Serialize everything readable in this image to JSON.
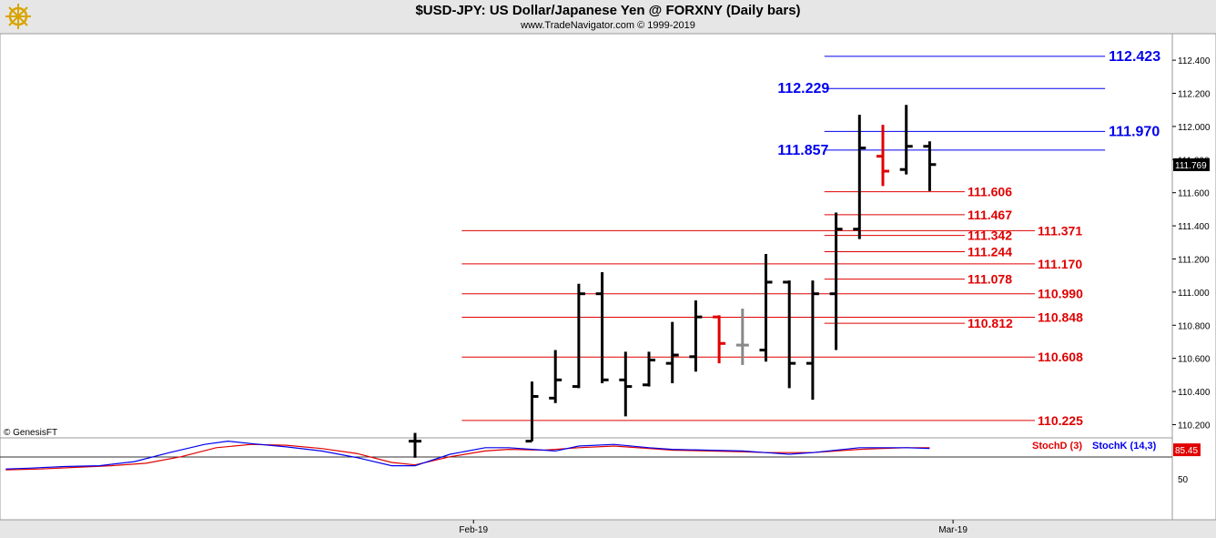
{
  "header": {
    "title": "$USD-JPY:  US Dollar/Japanese Yen @ FORXNY  (Daily bars)",
    "subtitle": "www.TradeNavigator.com © 1999-2019",
    "logo_icon": "ship-wheel-icon"
  },
  "chart_data": {
    "type": "ohlc",
    "y_ticks": [
      "110.200",
      "110.400",
      "110.600",
      "110.800",
      "111.000",
      "111.200",
      "111.400",
      "111.600",
      "111.800",
      "112.000",
      "112.200",
      "112.400"
    ],
    "ylim": [
      110.12,
      112.56
    ],
    "x_ticks": [
      {
        "label": "Feb-19",
        "index": 2.5
      },
      {
        "label": "Mar-19",
        "index": 23
      }
    ],
    "last_price": {
      "label": "111.769",
      "value": 111.769
    },
    "credit": "© GenesisFT",
    "colors": {
      "up": "#000000",
      "down": "#e00000",
      "neutral": "#888888",
      "blue": "#0000ee",
      "red": "#e00000"
    },
    "bars": [
      {
        "i": 0,
        "o": 110.1,
        "h": 110.15,
        "l": 110.0,
        "c": 110.1,
        "color": "up"
      },
      {
        "i": 5,
        "o": 110.1,
        "h": 110.46,
        "l": 110.1,
        "c": 110.37,
        "color": "up"
      },
      {
        "i": 6,
        "o": 110.36,
        "h": 110.65,
        "l": 110.33,
        "c": 110.47,
        "color": "up"
      },
      {
        "i": 7,
        "o": 110.43,
        "h": 111.05,
        "l": 110.42,
        "c": 110.99,
        "color": "up"
      },
      {
        "i": 8,
        "o": 110.99,
        "h": 111.12,
        "l": 110.45,
        "c": 110.47,
        "color": "up"
      },
      {
        "i": 9,
        "o": 110.47,
        "h": 110.64,
        "l": 110.25,
        "c": 110.43,
        "color": "up"
      },
      {
        "i": 10,
        "o": 110.44,
        "h": 110.64,
        "l": 110.43,
        "c": 110.59,
        "color": "up"
      },
      {
        "i": 11,
        "o": 110.57,
        "h": 110.82,
        "l": 110.45,
        "c": 110.62,
        "color": "up"
      },
      {
        "i": 12,
        "o": 110.61,
        "h": 110.95,
        "l": 110.52,
        "c": 110.85,
        "color": "up"
      },
      {
        "i": 13,
        "o": 110.85,
        "h": 110.86,
        "l": 110.57,
        "c": 110.69,
        "color": "down"
      },
      {
        "i": 14,
        "o": 110.68,
        "h": 110.9,
        "l": 110.56,
        "c": 110.68,
        "color": "neutral"
      },
      {
        "i": 15,
        "o": 110.65,
        "h": 111.23,
        "l": 110.58,
        "c": 111.06,
        "color": "up"
      },
      {
        "i": 16,
        "o": 111.06,
        "h": 111.07,
        "l": 110.42,
        "c": 110.57,
        "color": "up"
      },
      {
        "i": 17,
        "o": 110.57,
        "h": 111.07,
        "l": 110.35,
        "c": 110.99,
        "color": "up"
      },
      {
        "i": 18,
        "o": 110.99,
        "h": 111.48,
        "l": 110.65,
        "c": 111.38,
        "color": "up"
      },
      {
        "i": 19,
        "o": 111.38,
        "h": 112.07,
        "l": 111.32,
        "c": 111.87,
        "color": "up"
      },
      {
        "i": 20,
        "o": 111.82,
        "h": 112.01,
        "l": 111.64,
        "c": 111.73,
        "color": "down"
      },
      {
        "i": 21,
        "o": 111.74,
        "h": 112.13,
        "l": 111.71,
        "c": 111.88,
        "color": "up"
      },
      {
        "i": 22,
        "o": 111.88,
        "h": 111.91,
        "l": 111.61,
        "c": 111.77,
        "color": "up"
      }
    ],
    "levels": [
      {
        "label": "112.423",
        "value": 112.423,
        "color": "blue",
        "x1": 17.5,
        "x2": 29.5,
        "label_pos": "right"
      },
      {
        "label": "112.229",
        "value": 112.229,
        "color": "blue",
        "x1": 17.5,
        "x2": 29.5,
        "label_pos": "left"
      },
      {
        "label": "111.970",
        "value": 111.97,
        "color": "blue",
        "x1": 17.5,
        "x2": 29.5,
        "label_pos": "right"
      },
      {
        "label": "111.857",
        "value": 111.857,
        "color": "blue",
        "x1": 17.5,
        "x2": 29.5,
        "label_pos": "left"
      },
      {
        "label": "111.606",
        "value": 111.606,
        "color": "red",
        "x1": 17.5,
        "x2": 23.5,
        "label_pos": "end"
      },
      {
        "label": "111.467",
        "value": 111.467,
        "color": "red",
        "x1": 17.5,
        "x2": 23.5,
        "label_pos": "end"
      },
      {
        "label": "111.371",
        "value": 111.371,
        "color": "red",
        "x1": 2,
        "x2": 26.5,
        "label_pos": "end"
      },
      {
        "label": "111.342",
        "value": 111.342,
        "color": "red",
        "x1": 17.5,
        "x2": 23.5,
        "label_pos": "end"
      },
      {
        "label": "111.244",
        "value": 111.244,
        "color": "red",
        "x1": 17.5,
        "x2": 23.5,
        "label_pos": "end"
      },
      {
        "label": "111.170",
        "value": 111.17,
        "color": "red",
        "x1": 2,
        "x2": 26.5,
        "label_pos": "end"
      },
      {
        "label": "111.078",
        "value": 111.078,
        "color": "red",
        "x1": 17.5,
        "x2": 23.5,
        "label_pos": "end"
      },
      {
        "label": "110.990",
        "value": 110.99,
        "color": "red",
        "x1": 2,
        "x2": 26.5,
        "label_pos": "end"
      },
      {
        "label": "110.848",
        "value": 110.848,
        "color": "red",
        "x1": 2,
        "x2": 26.5,
        "label_pos": "end"
      },
      {
        "label": "110.812",
        "value": 110.812,
        "color": "red",
        "x1": 17.5,
        "x2": 23.5,
        "label_pos": "end"
      },
      {
        "label": "110.608",
        "value": 110.608,
        "color": "red",
        "x1": 2,
        "x2": 26.5,
        "label_pos": "end"
      },
      {
        "label": "110.225",
        "value": 110.225,
        "color": "red",
        "x1": 2,
        "x2": 26.5,
        "label_pos": "end"
      }
    ],
    "stochastic": {
      "ylim": [
        0,
        100
      ],
      "tick_label": "50",
      "tick_value": 50,
      "value_label": "85.45",
      "value": 85.45,
      "legend": [
        {
          "name": "StochD (3)",
          "color": "red"
        },
        {
          "name": "StochK (14,3)",
          "color": "blue"
        }
      ],
      "k": [
        {
          "x": -17.5,
          "y": 62
        },
        {
          "x": -16.5,
          "y": 63
        },
        {
          "x": -15,
          "y": 65
        },
        {
          "x": -13.5,
          "y": 66
        },
        {
          "x": -12,
          "y": 71
        },
        {
          "x": -10.5,
          "y": 82
        },
        {
          "x": -9,
          "y": 92
        },
        {
          "x": -8,
          "y": 96
        },
        {
          "x": -7,
          "y": 93
        },
        {
          "x": -5.5,
          "y": 89
        },
        {
          "x": -4,
          "y": 84
        },
        {
          "x": -2.5,
          "y": 76
        },
        {
          "x": -1,
          "y": 66
        },
        {
          "x": 0,
          "y": 66
        },
        {
          "x": 1.5,
          "y": 80
        },
        {
          "x": 3,
          "y": 88
        },
        {
          "x": 4,
          "y": 88
        },
        {
          "x": 6,
          "y": 84
        },
        {
          "x": 7,
          "y": 90
        },
        {
          "x": 8.5,
          "y": 92
        },
        {
          "x": 10,
          "y": 88
        },
        {
          "x": 11,
          "y": 86
        },
        {
          "x": 12.5,
          "y": 85
        },
        {
          "x": 14,
          "y": 84
        },
        {
          "x": 15,
          "y": 82
        },
        {
          "x": 16,
          "y": 80
        },
        {
          "x": 17,
          "y": 82
        },
        {
          "x": 19,
          "y": 88
        },
        {
          "x": 20,
          "y": 88
        },
        {
          "x": 21,
          "y": 88
        },
        {
          "x": 22,
          "y": 87
        }
      ],
      "d": [
        {
          "x": -17.5,
          "y": 61
        },
        {
          "x": -16,
          "y": 62
        },
        {
          "x": -14.5,
          "y": 64
        },
        {
          "x": -13,
          "y": 66
        },
        {
          "x": -11.5,
          "y": 69
        },
        {
          "x": -10,
          "y": 77
        },
        {
          "x": -8.5,
          "y": 88
        },
        {
          "x": -7,
          "y": 92
        },
        {
          "x": -5.5,
          "y": 91
        },
        {
          "x": -4,
          "y": 87
        },
        {
          "x": -2.5,
          "y": 81
        },
        {
          "x": -1,
          "y": 70
        },
        {
          "x": 0,
          "y": 67
        },
        {
          "x": 1.5,
          "y": 77
        },
        {
          "x": 3,
          "y": 84
        },
        {
          "x": 4,
          "y": 86
        },
        {
          "x": 5.5,
          "y": 85
        },
        {
          "x": 7,
          "y": 88
        },
        {
          "x": 8.5,
          "y": 90
        },
        {
          "x": 10,
          "y": 87
        },
        {
          "x": 11,
          "y": 85
        },
        {
          "x": 12.5,
          "y": 84
        },
        {
          "x": 14,
          "y": 83
        },
        {
          "x": 15,
          "y": 82
        },
        {
          "x": 16,
          "y": 82
        },
        {
          "x": 17,
          "y": 82
        },
        {
          "x": 19,
          "y": 86
        },
        {
          "x": 20,
          "y": 87
        },
        {
          "x": 21,
          "y": 88
        },
        {
          "x": 22,
          "y": 88
        }
      ]
    }
  }
}
